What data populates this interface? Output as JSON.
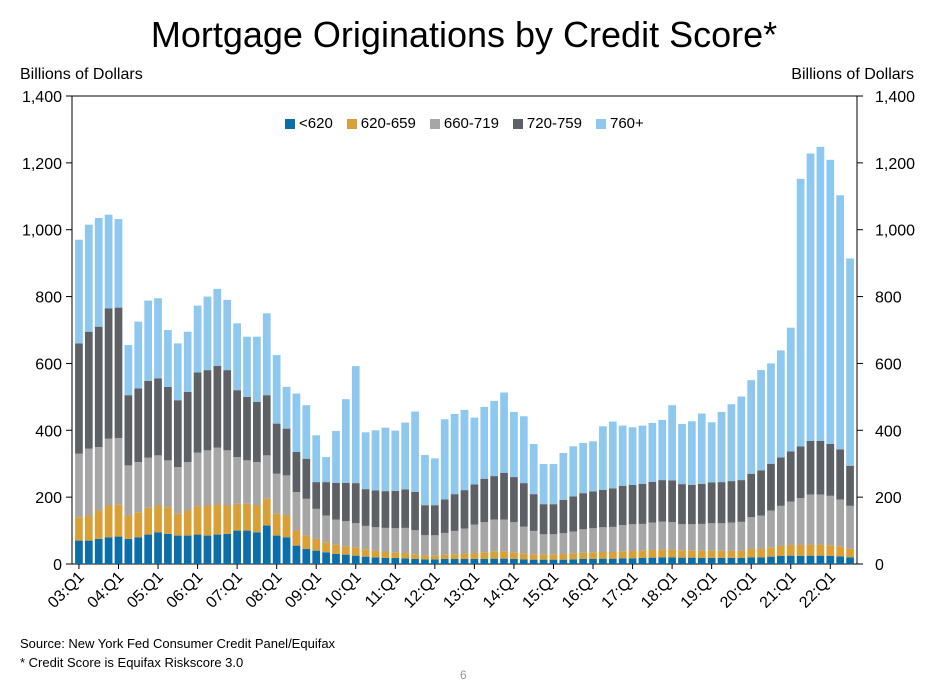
{
  "chart_data": {
    "type": "bar",
    "stacked": true,
    "title": "Mortgage Originations by Credit Score*",
    "ylabel_left": "Billions of Dollars",
    "ylabel_right": "Billions of Dollars",
    "ylim": [
      0,
      1400
    ],
    "yticks": [
      "0",
      "200",
      "400",
      "600",
      "800",
      "1,000",
      "1,200",
      "1,400"
    ],
    "ytick_values": [
      0,
      200,
      400,
      600,
      800,
      1000,
      1200,
      1400
    ],
    "x_tick_labels": [
      "03:Q1",
      "04:Q1",
      "05:Q1",
      "06:Q1",
      "07:Q1",
      "08:Q1",
      "09:Q1",
      "10:Q1",
      "11:Q1",
      "12:Q1",
      "13:Q1",
      "14:Q1",
      "15:Q1",
      "16:Q1",
      "17:Q1",
      "18:Q1",
      "19:Q1",
      "20:Q1",
      "21:Q1",
      "22:Q1"
    ],
    "categories": [
      "03:Q1",
      "03:Q2",
      "03:Q3",
      "03:Q4",
      "04:Q1",
      "04:Q2",
      "04:Q3",
      "04:Q4",
      "05:Q1",
      "05:Q2",
      "05:Q3",
      "05:Q4",
      "06:Q1",
      "06:Q2",
      "06:Q3",
      "06:Q4",
      "07:Q1",
      "07:Q2",
      "07:Q3",
      "07:Q4",
      "08:Q1",
      "08:Q2",
      "08:Q3",
      "08:Q4",
      "09:Q1",
      "09:Q2",
      "09:Q3",
      "09:Q4",
      "10:Q1",
      "10:Q2",
      "10:Q3",
      "10:Q4",
      "11:Q1",
      "11:Q2",
      "11:Q3",
      "11:Q4",
      "12:Q1",
      "12:Q2",
      "12:Q3",
      "12:Q4",
      "13:Q1",
      "13:Q2",
      "13:Q3",
      "13:Q4",
      "14:Q1",
      "14:Q2",
      "14:Q3",
      "14:Q4",
      "15:Q1",
      "15:Q2",
      "15:Q3",
      "15:Q4",
      "16:Q1",
      "16:Q2",
      "16:Q3",
      "16:Q4",
      "17:Q1",
      "17:Q2",
      "17:Q3",
      "17:Q4",
      "18:Q1",
      "18:Q2",
      "18:Q3",
      "18:Q4",
      "19:Q1",
      "19:Q2",
      "19:Q3",
      "19:Q4",
      "20:Q1",
      "20:Q2",
      "20:Q3",
      "20:Q4",
      "21:Q1",
      "21:Q2",
      "21:Q3",
      "21:Q4",
      "22:Q1",
      "22:Q2",
      "22:Q3"
    ],
    "series": [
      {
        "name": "<620",
        "color": "#0b6ea8",
        "values": [
          70,
          70,
          75,
          80,
          82,
          75,
          80,
          88,
          95,
          90,
          85,
          85,
          88,
          85,
          88,
          90,
          100,
          100,
          95,
          115,
          85,
          80,
          55,
          45,
          40,
          35,
          30,
          28,
          25,
          22,
          20,
          18,
          18,
          17,
          15,
          14,
          14,
          15,
          15,
          15,
          15,
          15,
          16,
          16,
          15,
          14,
          13,
          13,
          13,
          13,
          14,
          15,
          15,
          16,
          16,
          17,
          17,
          18,
          19,
          20,
          20,
          19,
          19,
          18,
          18,
          18,
          18,
          18,
          20,
          20,
          22,
          24,
          25,
          24,
          25,
          25,
          24,
          23,
          20
        ]
      },
      {
        "name": "620-659",
        "color": "#d9a038",
        "values": [
          70,
          75,
          85,
          95,
          95,
          70,
          75,
          80,
          80,
          80,
          65,
          75,
          85,
          90,
          90,
          85,
          80,
          80,
          80,
          80,
          65,
          65,
          45,
          40,
          35,
          30,
          28,
          25,
          25,
          22,
          20,
          18,
          17,
          16,
          14,
          12,
          12,
          13,
          14,
          16,
          18,
          20,
          22,
          22,
          20,
          18,
          16,
          16,
          16,
          17,
          18,
          19,
          20,
          20,
          20,
          21,
          22,
          22,
          23,
          23,
          23,
          22,
          22,
          22,
          22,
          22,
          22,
          22,
          25,
          25,
          28,
          30,
          32,
          33,
          33,
          33,
          32,
          30,
          26
        ]
      },
      {
        "name": "660-719",
        "color": "#a6a6a6",
        "values": [
          190,
          200,
          190,
          200,
          200,
          150,
          150,
          150,
          150,
          140,
          140,
          145,
          160,
          165,
          170,
          165,
          140,
          130,
          130,
          130,
          120,
          120,
          115,
          110,
          90,
          80,
          75,
          75,
          72,
          70,
          70,
          72,
          72,
          75,
          72,
          60,
          60,
          65,
          70,
          75,
          85,
          90,
          95,
          95,
          90,
          80,
          70,
          60,
          60,
          62,
          65,
          70,
          72,
          74,
          75,
          78,
          80,
          80,
          82,
          84,
          82,
          78,
          78,
          80,
          82,
          82,
          84,
          86,
          95,
          100,
          110,
          120,
          130,
          140,
          150,
          150,
          148,
          140,
          128
        ]
      },
      {
        "name": "720-759",
        "color": "#5d6166",
        "values": [
          330,
          350,
          360,
          390,
          390,
          210,
          220,
          230,
          230,
          220,
          200,
          210,
          240,
          240,
          245,
          240,
          200,
          190,
          180,
          180,
          150,
          140,
          120,
          120,
          80,
          100,
          110,
          115,
          120,
          110,
          110,
          110,
          112,
          115,
          115,
          90,
          90,
          100,
          110,
          115,
          120,
          130,
          130,
          140,
          135,
          130,
          110,
          90,
          90,
          100,
          105,
          108,
          110,
          112,
          115,
          118,
          118,
          120,
          122,
          124,
          125,
          120,
          118,
          120,
          122,
          123,
          124,
          125,
          130,
          135,
          140,
          145,
          150,
          155,
          160,
          160,
          155,
          150,
          120
        ]
      },
      {
        "name": "760+",
        "color": "#8ec8ee",
        "values": [
          310,
          320,
          325,
          280,
          265,
          150,
          200,
          240,
          240,
          170,
          170,
          180,
          200,
          220,
          230,
          210,
          200,
          180,
          195,
          245,
          205,
          125,
          175,
          160,
          140,
          75,
          155,
          250,
          350,
          170,
          180,
          190,
          180,
          200,
          240,
          150,
          140,
          240,
          240,
          240,
          200,
          215,
          225,
          240,
          195,
          200,
          150,
          120,
          120,
          140,
          150,
          150,
          150,
          190,
          200,
          180,
          172,
          174,
          176,
          180,
          225,
          180,
          190,
          210,
          180,
          210,
          230,
          250,
          280,
          300,
          300,
          320,
          370,
          800,
          860,
          880,
          850,
          760,
          620
        ]
      }
    ],
    "legend_position": "top-center",
    "grid": false
  },
  "annotations": {
    "source": "Source: New York Fed Consumer Credit Panel/Equifax",
    "footnote": "* Credit Score is Equifax Riskscore 3.0",
    "page_number": "6"
  }
}
